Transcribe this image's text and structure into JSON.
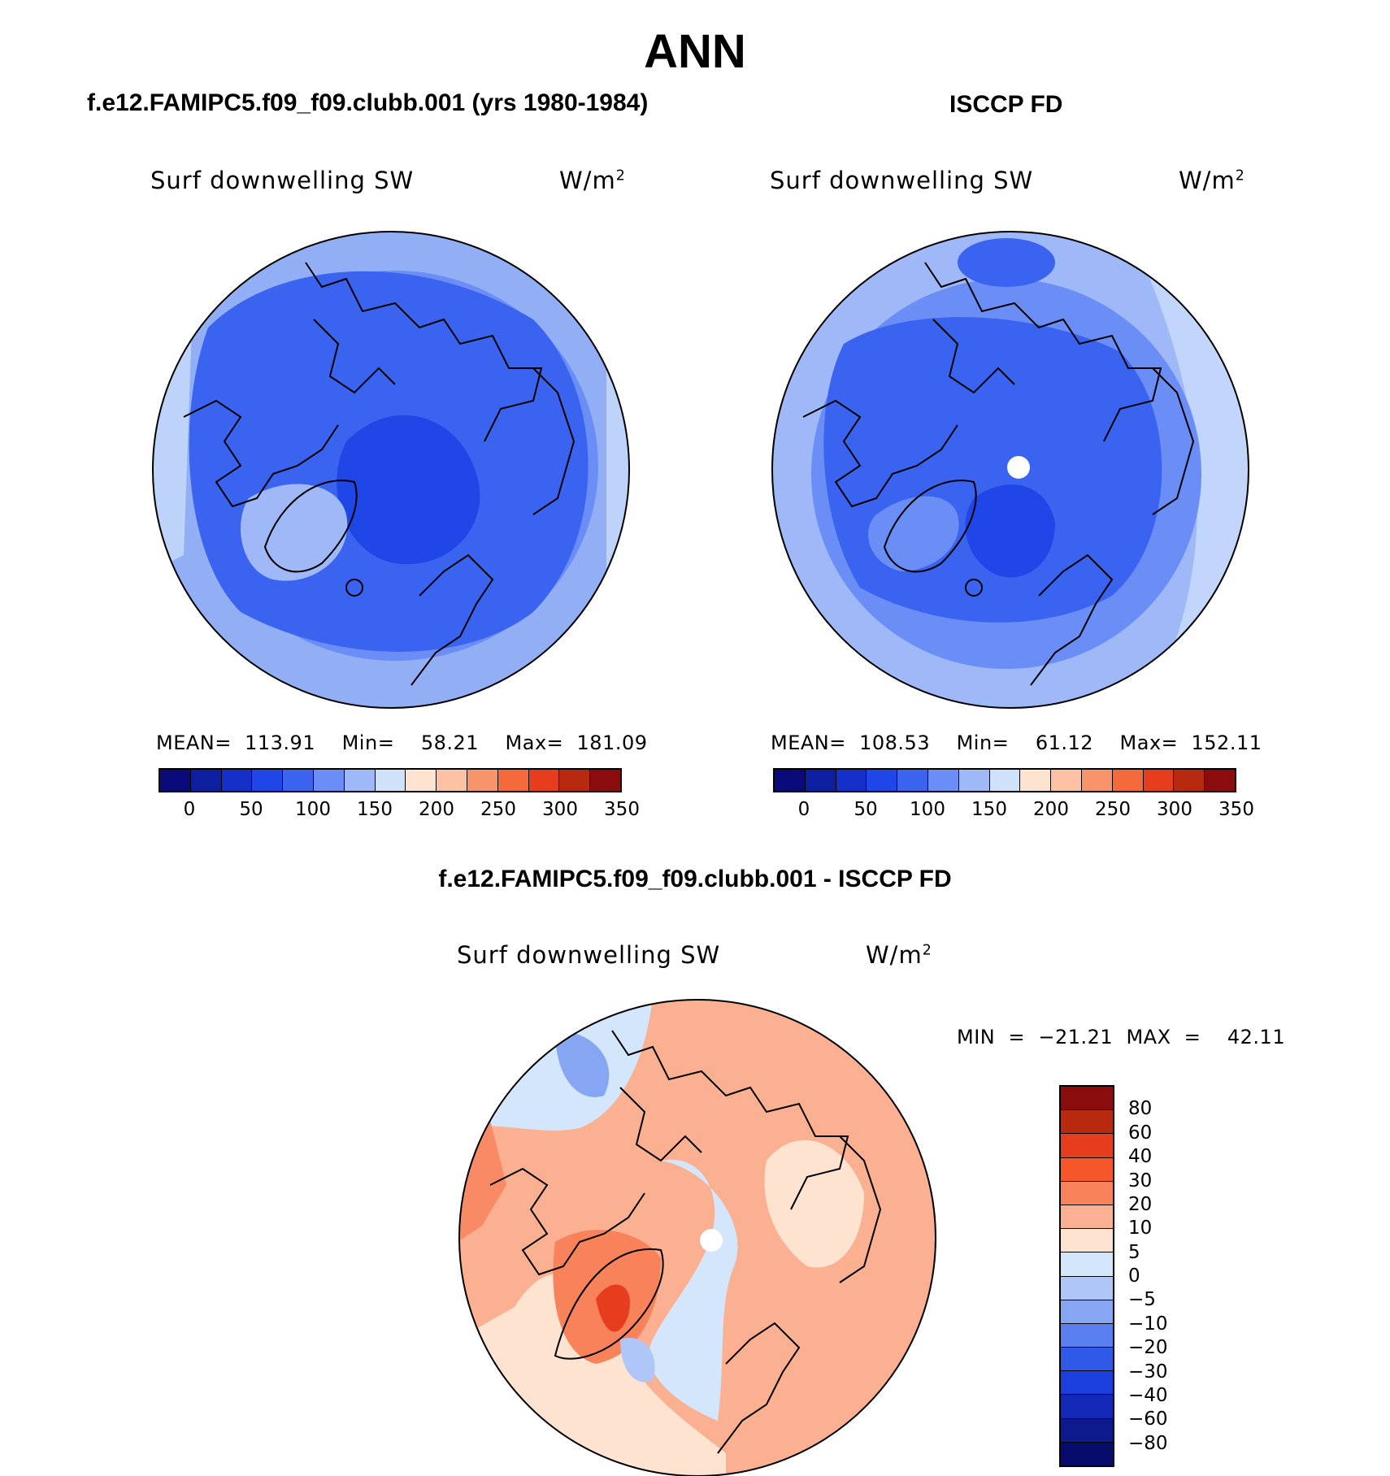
{
  "title": "ANN",
  "panels": {
    "model": {
      "title": "f.e12.FAMIPC5.f09_f09.clubb.001 (yrs 1980-1984)",
      "variable": "Surf downwelling SW",
      "units_base": "W/m",
      "units_exp": "2",
      "stats": "MEAN=  113.91    Min=    58.21    Max=  181.09"
    },
    "obs": {
      "title": "ISCCP FD",
      "variable": "Surf downwelling SW",
      "units_base": "W/m",
      "units_exp": "2",
      "stats": "MEAN=  108.53    Min=    61.12    Max=  152.11"
    },
    "diff": {
      "title": "f.e12.FAMIPC5.f09_f09.clubb.001 - ISCCP FD",
      "variable": "Surf downwelling SW",
      "units_base": "W/m",
      "units_exp": "2",
      "stats": "MIN  =  −21.21  MAX  =    42.11"
    }
  },
  "colorbar_main": {
    "colors": [
      "#0a0a7a",
      "#0e1ea0",
      "#1430c8",
      "#1f46e6",
      "#3a64f0",
      "#6a8ef5",
      "#9fb8f8",
      "#d0e2fb",
      "#fde3d0",
      "#fcc2a3",
      "#f8946a",
      "#f56a3a",
      "#e63d1e",
      "#b82a10",
      "#8a0c0c"
    ],
    "labels": [
      "0",
      "50",
      "100",
      "150",
      "200",
      "250",
      "300",
      "350"
    ]
  },
  "colorbar_diff": {
    "colors": [
      "#8a0c0c",
      "#b82a10",
      "#e63d1e",
      "#f5572a",
      "#f8825a",
      "#fbb091",
      "#fde3d0",
      "#d4e6fb",
      "#aec6f8",
      "#86a6f4",
      "#5a80f0",
      "#2f5ae8",
      "#1a3fdc",
      "#1428b8",
      "#0c1a8c",
      "#060a6a"
    ],
    "labels": [
      "80",
      "60",
      "40",
      "30",
      "20",
      "10",
      "5",
      "0",
      "−5",
      "−10",
      "−20",
      "−30",
      "−40",
      "−60",
      "−80"
    ]
  },
  "map_colors": {
    "deep": "#3a64f0",
    "mid": "#6a8ef5",
    "light": "#9fb8f8",
    "pale": "#d0e2fb",
    "bright": "#1f46e6",
    "warm_pale": "#fde3d0",
    "warm": "#fbb091",
    "warm_strong": "#f8825a",
    "warm_hot": "#e63d1e",
    "cool_pale": "#d4e6fb",
    "cool": "#aec6f8",
    "cool_mid": "#86a6f4"
  }
}
